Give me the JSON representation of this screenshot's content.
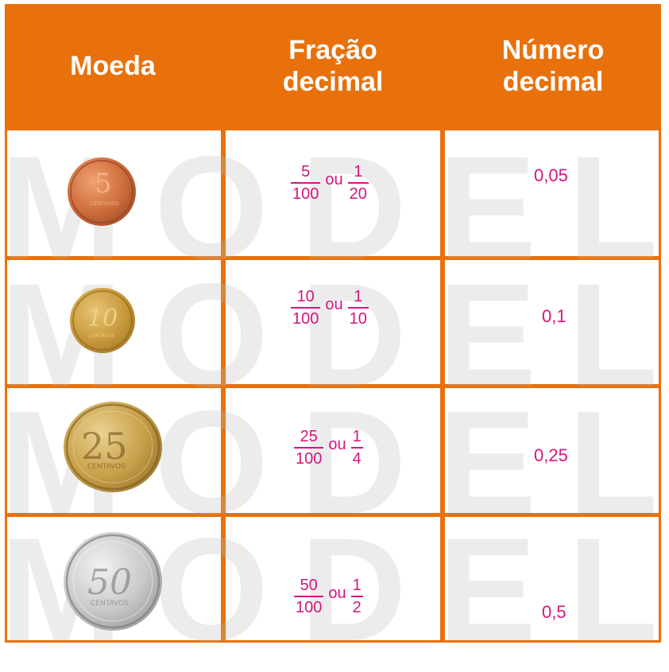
{
  "table": {
    "headers": [
      "Moeda",
      "Fração decimal",
      "Número decimal"
    ],
    "header_lines": {
      "col1": [
        "Moeda"
      ],
      "col2": [
        "Fração",
        "decimal"
      ],
      "col3": [
        "Número",
        "decimal"
      ]
    },
    "rows": [
      {
        "coin": {
          "numeral": "5",
          "label": "CENTAVOS",
          "metal": "copper"
        },
        "fraction_a": {
          "num": "5",
          "den": "100"
        },
        "connector": "ou",
        "fraction_b": {
          "num": "1",
          "den": "20"
        },
        "decimal": "0,05"
      },
      {
        "coin": {
          "numeral": "10",
          "label": "CENTAVOS",
          "metal": "gold"
        },
        "fraction_a": {
          "num": "10",
          "den": "100"
        },
        "connector": "ou",
        "fraction_b": {
          "num": "1",
          "den": "10"
        },
        "decimal": "0,1"
      },
      {
        "coin": {
          "numeral": "25",
          "label": "CENTAVOS",
          "metal": "gold"
        },
        "fraction_a": {
          "num": "25",
          "den": "100"
        },
        "connector": "ou",
        "fraction_b": {
          "num": "1",
          "den": "4"
        },
        "decimal": "0,25"
      },
      {
        "coin": {
          "numeral": "50",
          "label": "CENTAVOS",
          "metal": "silver"
        },
        "fraction_a": {
          "num": "50",
          "den": "100"
        },
        "connector": "ou",
        "fraction_b": {
          "num": "1",
          "den": "2"
        },
        "decimal": "0,5"
      }
    ]
  },
  "watermark": {
    "text": "MODELO"
  },
  "colors": {
    "header_bg": "#e8710c",
    "answer": "#d4157f",
    "copper": "#c8642c",
    "gold": "#c79a3a",
    "silver": "#c8c8c8"
  }
}
